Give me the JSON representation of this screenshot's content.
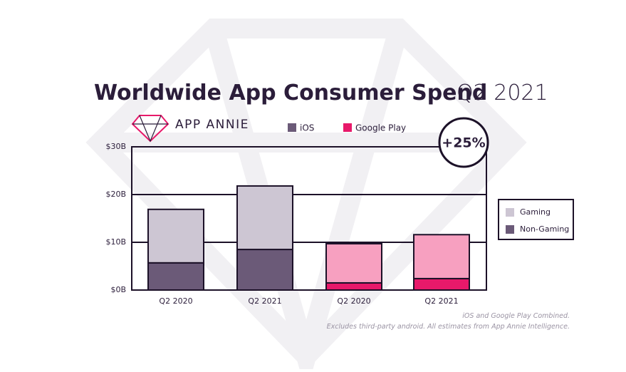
{
  "chart_data": {
    "type": "stacked-bar",
    "title": "Worldwide App Consumer Spend",
    "subtitle": "Q2 2021",
    "brand": "APP ANNIE",
    "annotation": "+25%",
    "footnote": [
      "iOS and Google Play Combined.",
      "Excludes third-party android. All estimates from App Annie Intelligence."
    ],
    "store_legend": [
      {
        "name": "iOS",
        "color": "#6b5a78"
      },
      {
        "name": "Google Play",
        "color": "#e8196a"
      }
    ],
    "categories": [
      "Q2 2020",
      "Q2 2021",
      "Q2 2020",
      "Q2 2021"
    ],
    "series": [
      {
        "name": "Non-Gaming",
        "color": "#6b5a78",
        "colors": [
          "#6b5a78",
          "#6b5a78",
          "#e8196a",
          "#e8196a"
        ],
        "values": [
          5.7,
          8.5,
          1.5,
          2.4
        ]
      },
      {
        "name": "Gaming",
        "color": "#cdc6d3",
        "colors": [
          "#cdc6d3",
          "#cdc6d3",
          "#f7a0c0",
          "#f7a0c0"
        ],
        "values": [
          11.2,
          13.3,
          8.2,
          9.2
        ]
      }
    ],
    "ylim": [
      0,
      30
    ],
    "yticks": [
      {
        "value": 0,
        "label": "$0B"
      },
      {
        "value": 10,
        "label": "$10B"
      },
      {
        "value": 20,
        "label": "$20B"
      },
      {
        "value": 30,
        "label": "$30B"
      }
    ],
    "grid": true
  }
}
